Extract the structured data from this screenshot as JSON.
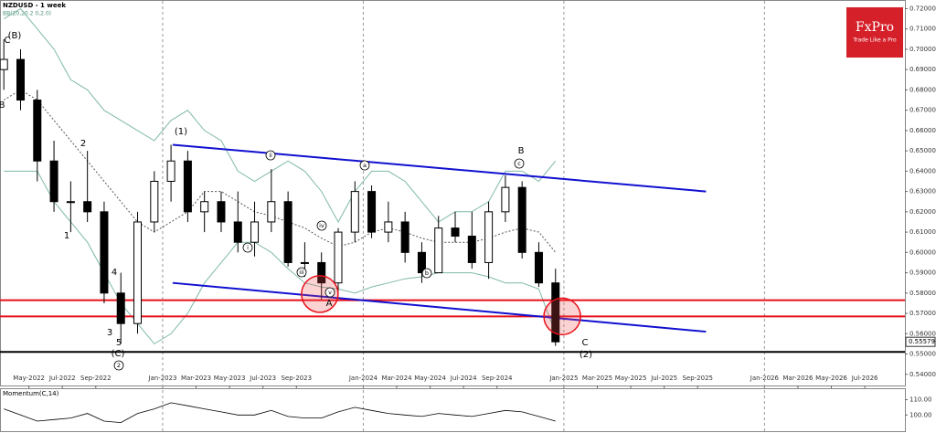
{
  "chart_data": {
    "type": "candlestick",
    "title": "NZDUSD - 1 week",
    "indicator_label": "BB(20,20.2 0,2.0)",
    "logo": {
      "name": "FxPro",
      "tagline": "Trade Like a Pro",
      "color": "#d5202a"
    },
    "last_price_label": "0.55579",
    "x": [
      2.5,
      3.5,
      4.5,
      5.5,
      6.5,
      7.5,
      8.5,
      9.5,
      10.5,
      11.5,
      12.5,
      13.5,
      14.5,
      15.5,
      16.5,
      17.5,
      18.5,
      19.5,
      20.5,
      21.5,
      22.5,
      23.5,
      24.5,
      25.5,
      26.5,
      27.5,
      28.5,
      29.5,
      30.5,
      31.5,
      32.5,
      33.5,
      34.5,
      35.5
    ],
    "open": [
      0.69,
      0.695,
      0.675,
      0.645,
      0.625,
      0.625,
      0.62,
      0.58,
      0.565,
      0.615,
      0.635,
      0.645,
      0.62,
      0.625,
      0.615,
      0.605,
      0.615,
      0.625,
      0.595,
      0.595,
      0.585,
      0.61,
      0.63,
      0.61,
      0.615,
      0.6,
      0.59,
      0.612,
      0.608,
      0.595,
      0.62,
      0.632,
      0.6,
      0.585
    ],
    "high": [
      0.705,
      0.7,
      0.68,
      0.655,
      0.635,
      0.65,
      0.625,
      0.59,
      0.62,
      0.64,
      0.653,
      0.65,
      0.63,
      0.63,
      0.63,
      0.625,
      0.641,
      0.63,
      0.605,
      0.6,
      0.612,
      0.635,
      0.633,
      0.625,
      0.62,
      0.605,
      0.618,
      0.62,
      0.62,
      0.625,
      0.638,
      0.635,
      0.605,
      0.592
    ],
    "low": [
      0.68,
      0.67,
      0.635,
      0.62,
      0.61,
      0.615,
      0.575,
      0.555,
      0.56,
      0.61,
      0.625,
      0.615,
      0.61,
      0.61,
      0.6,
      0.598,
      0.61,
      0.593,
      0.588,
      0.577,
      0.58,
      0.605,
      0.607,
      0.605,
      0.595,
      0.585,
      0.59,
      0.605,
      0.592,
      0.587,
      0.615,
      0.597,
      0.583,
      0.554
    ],
    "close": [
      0.695,
      0.675,
      0.645,
      0.625,
      0.625,
      0.62,
      0.58,
      0.565,
      0.615,
      0.635,
      0.645,
      0.62,
      0.625,
      0.615,
      0.605,
      0.615,
      0.625,
      0.595,
      0.595,
      0.585,
      0.61,
      0.63,
      0.61,
      0.615,
      0.6,
      0.59,
      0.612,
      0.608,
      0.595,
      0.62,
      0.632,
      0.6,
      0.585,
      0.556
    ],
    "up_color": "#000000",
    "down_color": "#000000",
    "bands": [
      {
        "color": "#7fb9a8",
        "dash": false,
        "values": [
          0.715,
          0.72,
          0.71,
          0.7,
          0.685,
          0.68,
          0.67,
          0.665,
          0.66,
          0.655,
          0.665,
          0.67,
          0.66,
          0.655,
          0.64,
          0.635,
          0.64,
          0.645,
          0.64,
          0.63,
          0.615,
          0.63,
          0.64,
          0.64,
          0.635,
          0.625,
          0.615,
          0.62,
          0.62,
          0.625,
          0.64,
          0.64,
          0.635,
          0.645
        ]
      },
      {
        "color": "#555555",
        "dash": true,
        "values": [
          0.675,
          0.68,
          0.675,
          0.665,
          0.655,
          0.645,
          0.635,
          0.625,
          0.615,
          0.61,
          0.615,
          0.62,
          0.63,
          0.63,
          0.625,
          0.62,
          0.618,
          0.615,
          0.612,
          0.607,
          0.603,
          0.605,
          0.61,
          0.612,
          0.61,
          0.607,
          0.605,
          0.605,
          0.605,
          0.607,
          0.61,
          0.612,
          0.61,
          0.6
        ]
      },
      {
        "color": "#7fb9a8",
        "dash": false,
        "values": [
          0.64,
          0.64,
          0.64,
          0.625,
          0.615,
          0.605,
          0.59,
          0.575,
          0.565,
          0.555,
          0.56,
          0.57,
          0.585,
          0.595,
          0.605,
          0.605,
          0.6,
          0.592,
          0.585,
          0.583,
          0.582,
          0.58,
          0.583,
          0.585,
          0.587,
          0.588,
          0.59,
          0.59,
          0.59,
          0.588,
          0.585,
          0.585,
          0.582,
          0.56
        ]
      }
    ],
    "trendlines": [
      {
        "color": "#1010d0",
        "x": [
          12.6,
          44.5
        ],
        "y": [
          0.653,
          0.63
        ]
      },
      {
        "color": "#1010d0",
        "x": [
          12.6,
          44.5
        ],
        "y": [
          0.585,
          0.561
        ]
      }
    ],
    "hlines": [
      {
        "color": "#e8101a",
        "value": 0.5765
      },
      {
        "color": "#e8101a",
        "value": 0.5685
      },
      {
        "color": "#000000",
        "value": 0.551
      }
    ],
    "circles": [
      {
        "x": 21.4,
        "y": 0.5795
      },
      {
        "x": 35.9,
        "y": 0.5685
      }
    ],
    "annotations": [
      {
        "text": "C"
      },
      {
        "text": "(B)"
      },
      {
        "text": "B"
      },
      {
        "text": "2"
      },
      {
        "text": "1"
      },
      {
        "text": "4"
      },
      {
        "text": "3"
      },
      {
        "text": "5"
      },
      {
        "text": "(C)"
      },
      {
        "text": "2",
        "circled": true
      },
      {
        "text": "(1)"
      },
      {
        "text": "ii",
        "circled": true
      },
      {
        "text": "i",
        "circled": true
      },
      {
        "text": "iii",
        "circled": true
      },
      {
        "text": "iv",
        "circled": true
      },
      {
        "text": "v",
        "circled": true
      },
      {
        "text": "A"
      },
      {
        "text": "a",
        "circled": true
      },
      {
        "text": "b",
        "circled": true
      },
      {
        "text": "B"
      },
      {
        "text": "c",
        "circled": true
      },
      {
        "text": "C"
      },
      {
        "text": "(2)"
      }
    ],
    "ylim": [
      0.5345,
      0.7238
    ],
    "yticks": [
      {
        "value": 0.54,
        "label": "0.54000"
      },
      {
        "value": 0.55,
        "label": "0.55000"
      },
      {
        "value": 0.56,
        "label": "0.56000"
      },
      {
        "value": 0.57,
        "label": "0.57000"
      },
      {
        "value": 0.58,
        "label": "0.58000"
      },
      {
        "value": 0.59,
        "label": "0.59000"
      },
      {
        "value": 0.6,
        "label": "0.60000"
      },
      {
        "value": 0.61,
        "label": "0.61000"
      },
      {
        "value": 0.62,
        "label": "0.62000"
      },
      {
        "value": 0.63,
        "label": "0.63000"
      },
      {
        "value": 0.64,
        "label": "0.64000"
      },
      {
        "value": 0.65,
        "label": "0.65000"
      },
      {
        "value": 0.66,
        "label": "0.66000"
      },
      {
        "value": 0.67,
        "label": "0.67000"
      },
      {
        "value": 0.68,
        "label": "0.68000"
      },
      {
        "value": 0.69,
        "label": "0.69000"
      },
      {
        "value": 0.7,
        "label": "0.70000"
      },
      {
        "value": 0.71,
        "label": "0.71000"
      },
      {
        "value": 0.72,
        "label": "0.72000"
      }
    ],
    "xlim": [
      2.27,
      56.4
    ],
    "xticks": [
      {
        "value": 4,
        "label": "May-2022"
      },
      {
        "value": 6,
        "label": "Jul-2022"
      },
      {
        "value": 8,
        "label": "Sep-2022"
      },
      {
        "value": 12,
        "label": "Jan-2023"
      },
      {
        "value": 14,
        "label": "Mar-2023"
      },
      {
        "value": 16,
        "label": "May-2023"
      },
      {
        "value": 18,
        "label": "Jul-2023"
      },
      {
        "value": 20,
        "label": "Sep-2023"
      },
      {
        "value": 24,
        "label": "Jan-2024"
      },
      {
        "value": 26,
        "label": "Mar-2024"
      },
      {
        "value": 28,
        "label": "May-2024"
      },
      {
        "value": 30,
        "label": "Jul-2024"
      },
      {
        "value": 32,
        "label": "Sep-2024"
      },
      {
        "value": 36,
        "label": "Jan-2025"
      },
      {
        "value": 38,
        "label": "Mar-2025"
      },
      {
        "value": 40,
        "label": "May-2025"
      },
      {
        "value": 42,
        "label": "Jul-2025"
      },
      {
        "value": 44,
        "label": "Sep-2025"
      },
      {
        "value": 48,
        "label": "Jan-2026"
      },
      {
        "value": 50,
        "label": "Mar-2026"
      },
      {
        "value": 52,
        "label": "May-2026"
      },
      {
        "value": 54,
        "label": "Jul-2026"
      }
    ],
    "year_lines": [
      12,
      24,
      36,
      48
    ],
    "momentum": {
      "title": "Momentum(C,14)",
      "color": "#000000",
      "values": [
        104,
        100,
        96,
        97,
        98,
        101,
        96,
        95,
        101,
        104,
        108,
        106,
        104,
        102,
        100,
        100,
        103,
        99,
        98,
        98,
        102,
        105,
        103,
        101,
        100,
        99,
        101,
        100,
        99,
        101,
        103,
        102,
        99,
        96
      ],
      "ylim": [
        89.4,
        116.9
      ],
      "yticks": [
        {
          "value": 100,
          "label": "100.00"
        },
        {
          "value": 110,
          "label": "110.00"
        }
      ]
    }
  }
}
